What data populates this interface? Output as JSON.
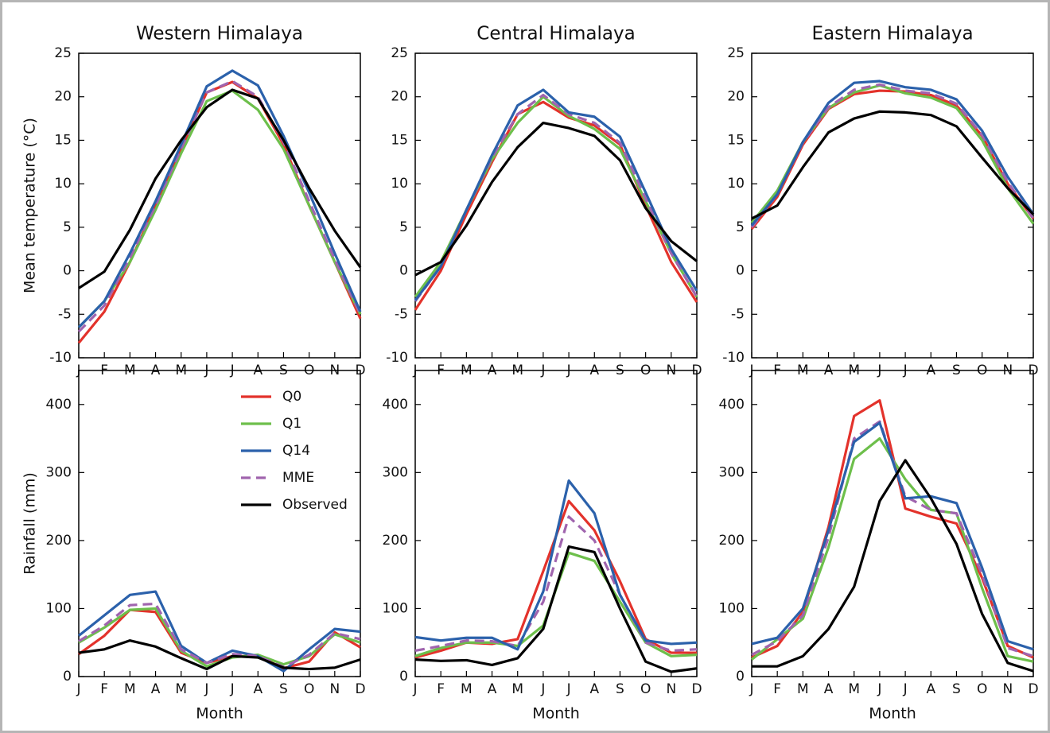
{
  "chart_data": [
    {
      "type": "line",
      "title": "Western Himalaya",
      "y_label": "Mean temperature (°C)",
      "categories": [
        "J",
        "F",
        "M",
        "A",
        "M",
        "J",
        "J",
        "A",
        "S",
        "O",
        "N",
        "D"
      ],
      "ylim": [
        -10,
        25
      ],
      "yticks": [
        -10,
        -5,
        0,
        5,
        10,
        15,
        20,
        25
      ],
      "series": [
        {
          "color": "#e3322b",
          "values": [
            -8.3,
            -4.7,
            1,
            7.5,
            14,
            20.5,
            21.7,
            19.8,
            14.5,
            7.5,
            1,
            -5.5
          ]
        },
        {
          "color": "#6dbf4b",
          "values": [
            -6.5,
            -3.5,
            1,
            7,
            13.5,
            19.5,
            20.7,
            18.5,
            14,
            7.5,
            1,
            -5
          ]
        },
        {
          "color": "#a064ae",
          "dashed": true,
          "values": [
            -7,
            -4,
            1.5,
            7.5,
            14,
            20.5,
            21.8,
            20,
            14.8,
            8,
            1.3,
            -5
          ]
        },
        {
          "color": "#2b61ab",
          "values": [
            -6.5,
            -3.5,
            2,
            8,
            14.5,
            21.2,
            23,
            21.3,
            15.5,
            9,
            2,
            -4.7
          ]
        },
        {
          "color": "#000000",
          "values": [
            -2,
            -0.1,
            4.7,
            10.6,
            15,
            18.8,
            20.8,
            19.8,
            15,
            9.5,
            4.6,
            0.4
          ]
        }
      ]
    },
    {
      "type": "line",
      "title": "Central Himalaya",
      "categories": [
        "J",
        "F",
        "M",
        "A",
        "M",
        "J",
        "J",
        "A",
        "S",
        "O",
        "N",
        "D"
      ],
      "ylim": [
        -10,
        25
      ],
      "yticks": [
        -10,
        -5,
        0,
        5,
        10,
        15,
        20,
        25
      ],
      "series": [
        {
          "color": "#e3322b",
          "values": [
            -4.5,
            0,
            6.5,
            12.5,
            18,
            19.4,
            17.6,
            16.7,
            14.5,
            7.5,
            1,
            -3.6
          ]
        },
        {
          "color": "#6dbf4b",
          "values": [
            -3,
            1,
            7,
            12.8,
            17,
            20,
            17.8,
            16.3,
            14,
            8,
            2,
            -3
          ]
        },
        {
          "color": "#a064ae",
          "dashed": true,
          "values": [
            -3.5,
            0.5,
            7,
            13,
            18,
            20.2,
            18,
            17,
            14.7,
            8.3,
            2,
            -3
          ]
        },
        {
          "color": "#2b61ab",
          "values": [
            -3.4,
            0.5,
            7,
            13.3,
            19,
            20.8,
            18.2,
            17.7,
            15.4,
            9,
            2.5,
            -2.3
          ]
        },
        {
          "color": "#000000",
          "values": [
            -0.5,
            1,
            5.2,
            10.2,
            14.2,
            17,
            16.4,
            15.5,
            12.7,
            7.2,
            3.4,
            1.1
          ]
        }
      ]
    },
    {
      "type": "line",
      "title": "Eastern Himalaya",
      "categories": [
        "J",
        "F",
        "M",
        "A",
        "M",
        "J",
        "J",
        "A",
        "S",
        "O",
        "N",
        "D"
      ],
      "ylim": [
        -10,
        25
      ],
      "yticks": [
        -10,
        -5,
        0,
        5,
        10,
        15,
        20,
        25
      ],
      "series": [
        {
          "color": "#e3322b",
          "values": [
            4.8,
            8.5,
            14.5,
            18.6,
            20.3,
            20.7,
            20.6,
            20.2,
            19,
            15.5,
            10,
            6
          ]
        },
        {
          "color": "#6dbf4b",
          "values": [
            5.5,
            9.2,
            14.8,
            18.7,
            20.5,
            21.3,
            20.4,
            19.9,
            18.7,
            15,
            9.5,
            5.4
          ]
        },
        {
          "color": "#a064ae",
          "dashed": true,
          "values": [
            5,
            8.8,
            14.7,
            18.8,
            20.8,
            21.4,
            20.7,
            20.4,
            19.2,
            15.6,
            10.2,
            6
          ]
        },
        {
          "color": "#2b61ab",
          "values": [
            5.2,
            8.8,
            14.8,
            19.3,
            21.6,
            21.8,
            21.1,
            20.8,
            19.7,
            16.1,
            10.8,
            6.5
          ]
        },
        {
          "color": "#000000",
          "values": [
            6,
            7.5,
            11.9,
            15.9,
            17.5,
            18.3,
            18.2,
            17.9,
            16.6,
            13,
            9.5,
            6.5
          ]
        }
      ]
    },
    {
      "type": "line",
      "y_label": "Rainfall (mm)",
      "x_label": "Month",
      "legend": "upper right",
      "categories": [
        "J",
        "F",
        "M",
        "A",
        "M",
        "J",
        "J",
        "A",
        "S",
        "O",
        "N",
        "D"
      ],
      "ylim": [
        0,
        450
      ],
      "yticks": [
        0,
        100,
        200,
        300,
        400
      ],
      "series": [
        {
          "name": "Q0",
          "color": "#e3322b",
          "values": [
            33,
            60,
            98,
            95,
            35,
            20,
            30,
            30,
            12,
            22,
            65,
            43
          ]
        },
        {
          "name": "Q1",
          "color": "#6dbf4b",
          "values": [
            50,
            72,
            98,
            100,
            38,
            15,
            28,
            32,
            18,
            30,
            62,
            50
          ]
        },
        {
          "name": "Q14",
          "color": "#2b61ab",
          "values": [
            60,
            90,
            120,
            125,
            45,
            20,
            38,
            30,
            8,
            40,
            70,
            66
          ]
        },
        {
          "name": "MME",
          "color": "#a064ae",
          "dashed": true,
          "values": [
            52,
            75,
            105,
            107,
            40,
            20,
            33,
            30,
            14,
            32,
            64,
            55
          ]
        },
        {
          "name": "Observed",
          "color": "#000000",
          "values": [
            35,
            40,
            53,
            44,
            27,
            11,
            30,
            28,
            13,
            11,
            13,
            25
          ]
        }
      ]
    },
    {
      "type": "line",
      "x_label": "Month",
      "categories": [
        "J",
        "F",
        "M",
        "A",
        "M",
        "J",
        "J",
        "A",
        "S",
        "O",
        "N",
        "D"
      ],
      "ylim": [
        0,
        450
      ],
      "yticks": [
        0,
        100,
        200,
        300,
        400
      ],
      "series": [
        {
          "color": "#e3322b",
          "values": [
            28,
            38,
            50,
            48,
            55,
            155,
            258,
            215,
            140,
            55,
            35,
            35
          ]
        },
        {
          "color": "#6dbf4b",
          "values": [
            30,
            42,
            50,
            50,
            45,
            75,
            182,
            170,
            110,
            50,
            30,
            32
          ]
        },
        {
          "color": "#a064ae",
          "dashed": true,
          "values": [
            38,
            45,
            53,
            52,
            45,
            110,
            235,
            200,
            120,
            50,
            38,
            40
          ]
        },
        {
          "color": "#2b61ab",
          "values": [
            58,
            53,
            57,
            57,
            40,
            125,
            288,
            240,
            120,
            53,
            48,
            50
          ]
        },
        {
          "color": "#000000",
          "values": [
            25,
            23,
            24,
            17,
            27,
            70,
            191,
            183,
            100,
            22,
            7,
            12
          ]
        }
      ]
    },
    {
      "type": "line",
      "x_label": "Month",
      "categories": [
        "J",
        "F",
        "M",
        "A",
        "M",
        "J",
        "J",
        "A",
        "S",
        "O",
        "N",
        "D"
      ],
      "ylim": [
        0,
        450
      ],
      "yticks": [
        0,
        100,
        200,
        300,
        400
      ],
      "series": [
        {
          "color": "#e3322b",
          "values": [
            28,
            45,
            95,
            220,
            383,
            406,
            247,
            235,
            225,
            145,
            45,
            28
          ]
        },
        {
          "color": "#6dbf4b",
          "values": [
            25,
            55,
            85,
            190,
            320,
            350,
            290,
            245,
            240,
            130,
            30,
            22
          ]
        },
        {
          "color": "#a064ae",
          "dashed": true,
          "values": [
            32,
            52,
            90,
            205,
            350,
            375,
            265,
            245,
            240,
            150,
            42,
            30
          ]
        },
        {
          "color": "#2b61ab",
          "values": [
            48,
            57,
            100,
            215,
            345,
            373,
            262,
            265,
            255,
            160,
            52,
            40
          ]
        },
        {
          "color": "#000000",
          "values": [
            15,
            15,
            30,
            70,
            132,
            258,
            318,
            262,
            195,
            92,
            20,
            8
          ]
        }
      ]
    }
  ]
}
